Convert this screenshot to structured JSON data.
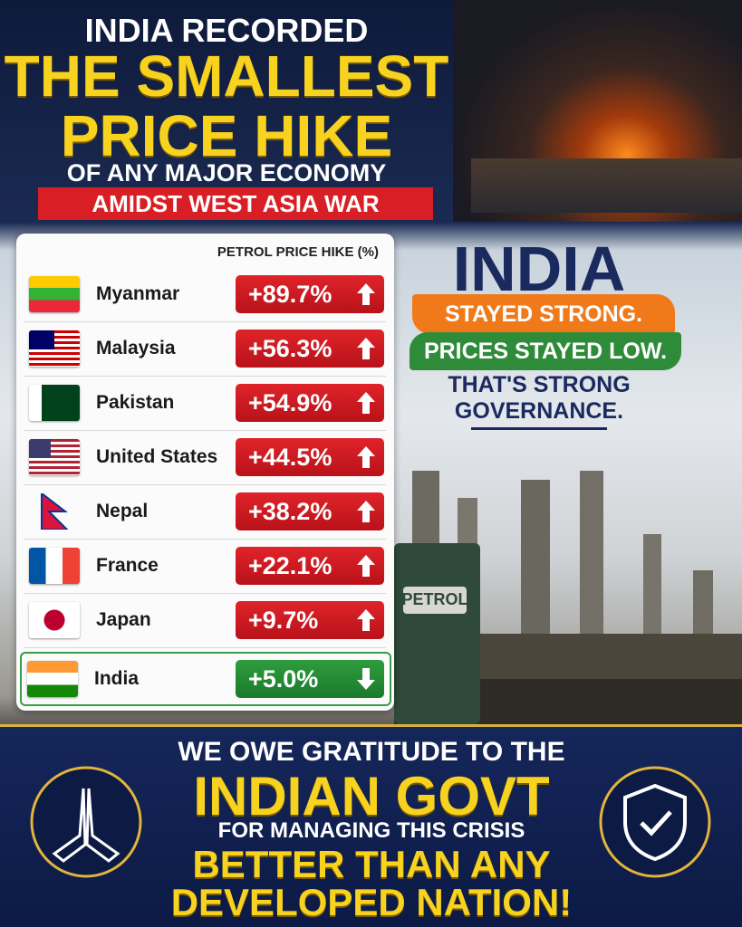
{
  "header": {
    "line1": "INDIA RECORDED",
    "line2": "THE SMALLEST",
    "line3": "PRICE HIKE",
    "line4": "OF ANY MAJOR ECONOMY",
    "banner": "AMIDST WEST ASIA WAR"
  },
  "table": {
    "title": "PETROL PRICE HIKE (%)",
    "rows": [
      [
        "Myanmar",
        "+89.7%"
      ],
      [
        "Malaysia",
        "+56.3%"
      ],
      [
        "Pakistan",
        "+54.9%"
      ],
      [
        "United States",
        "+44.5%"
      ],
      [
        "Nepal",
        "+38.2%"
      ],
      [
        "France",
        "+22.1%"
      ],
      [
        "Japan",
        "+9.7%"
      ],
      [
        "India",
        "+5.0%"
      ]
    ]
  },
  "side": {
    "title": "INDIA",
    "line1": "STAYED STRONG.",
    "line2": "PRICES STAYED LOW.",
    "line3": "THAT'S STRONG",
    "line4": "GOVERNANCE.",
    "pump": "PETROL"
  },
  "footer": {
    "line1": "WE OWE GRATITUDE TO THE",
    "line2": "INDIAN GOVT",
    "line3": "FOR MANAGING THIS CRISIS",
    "line4": "BETTER THAN ANY",
    "line5": "DEVELOPED NATION!"
  }
}
